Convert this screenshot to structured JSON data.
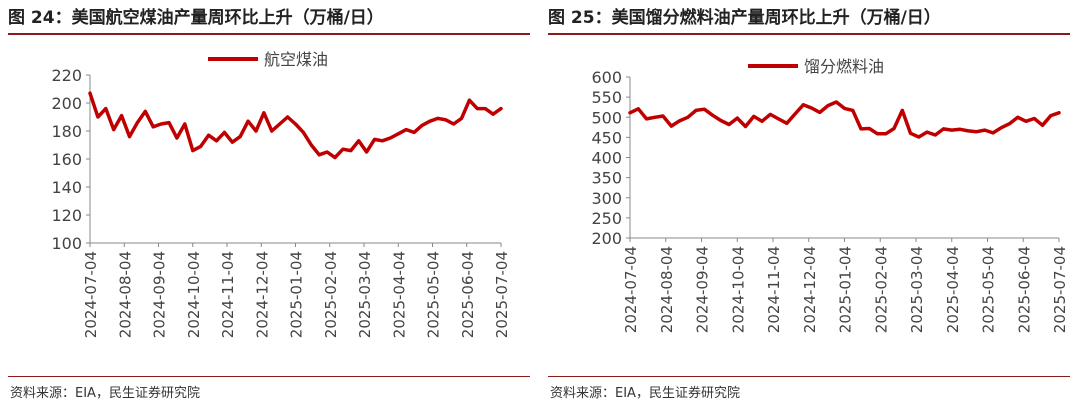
{
  "charts": [
    {
      "title": "图 24：美国航空煤油产量周环比上升（万桶/日）",
      "source": "资料来源：EIA，民生证券研究院"
    },
    {
      "title": "图 25：美国馏分燃料油产量周环比上升（万桶/日）",
      "source": "资料来源：EIA，民生证券研究院"
    }
  ],
  "chart_data": [
    {
      "type": "line",
      "title": "图 24：美国航空煤油产量周环比上升（万桶/日）",
      "xlabel": "",
      "ylabel": "",
      "ylim": [
        100,
        220
      ],
      "yticks": [
        100,
        120,
        140,
        160,
        180,
        200,
        220
      ],
      "xticks": [
        "2024-07-04",
        "2024-08-04",
        "2024-09-04",
        "2024-10-04",
        "2024-11-04",
        "2024-12-04",
        "2025-01-04",
        "2025-02-04",
        "2025-03-04",
        "2025-04-04",
        "2025-05-04",
        "2025-06-04",
        "2025-07-04"
      ],
      "grid": false,
      "legend": "top",
      "color": "#c00000",
      "series": [
        {
          "name": "航空煤油",
          "values": [
            207,
            190,
            196,
            181,
            191,
            176,
            186,
            194,
            183,
            185,
            186,
            175,
            185,
            166,
            169,
            177,
            173,
            179,
            172,
            176,
            187,
            180,
            193,
            180,
            185,
            190,
            185,
            179,
            170,
            163,
            165,
            161,
            167,
            166,
            173,
            165,
            174,
            173,
            175,
            178,
            181,
            179,
            184,
            187,
            189,
            188,
            185,
            189,
            202,
            196,
            196,
            192,
            196
          ]
        }
      ]
    },
    {
      "type": "line",
      "title": "图 25：美国馏分燃料油产量周环比上升（万桶/日）",
      "xlabel": "",
      "ylabel": "",
      "ylim": [
        200,
        600
      ],
      "yticks": [
        200,
        250,
        300,
        350,
        400,
        450,
        500,
        550,
        600
      ],
      "xticks": [
        "2024-07-04",
        "2024-08-04",
        "2024-09-04",
        "2024-10-04",
        "2024-11-04",
        "2024-12-04",
        "2025-01-04",
        "2025-02-04",
        "2025-03-04",
        "2025-04-04",
        "2025-05-04",
        "2025-06-04",
        "2025-07-04"
      ],
      "grid": false,
      "legend": "top",
      "color": "#c00000",
      "series": [
        {
          "name": "馏分燃料油",
          "values": [
            511,
            521,
            496,
            500,
            503,
            478,
            491,
            500,
            517,
            520,
            505,
            492,
            482,
            498,
            477,
            502,
            490,
            507,
            496,
            485,
            508,
            531,
            523,
            512,
            529,
            538,
            522,
            517,
            471,
            472,
            459,
            459,
            472,
            517,
            460,
            451,
            463,
            456,
            471,
            468,
            470,
            466,
            464,
            468,
            461,
            474,
            484,
            500,
            490,
            497,
            480,
            504,
            511
          ]
        }
      ]
    }
  ]
}
